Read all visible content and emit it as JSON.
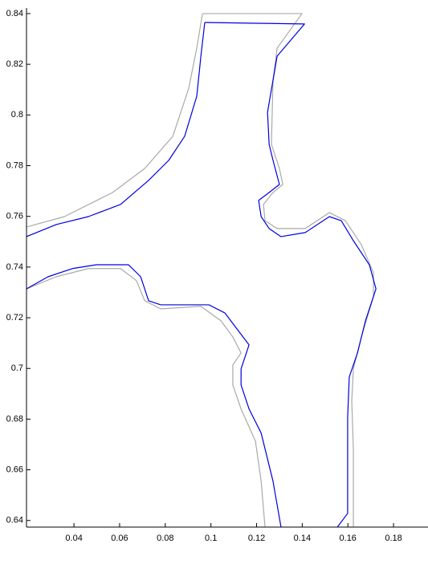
{
  "chart_data": {
    "type": "line",
    "xlim": [
      0.0192,
      0.1951
    ],
    "ylim": [
      0.6374,
      0.8422
    ],
    "xticks": [
      0.04,
      0.06,
      0.08,
      0.1,
      0.12,
      0.14,
      0.16,
      0.18
    ],
    "yticks": [
      0.64,
      0.66,
      0.68,
      0.7,
      0.72,
      0.74,
      0.76,
      0.78,
      0.8,
      0.82,
      0.84
    ],
    "series": [
      {
        "color": "#a9a9a9",
        "x": [
          0.0963,
          0.1399,
          0.129,
          0.1272,
          0.1265,
          0.13,
          0.1315,
          0.1272,
          0.123,
          0.1237,
          0.129,
          0.1413,
          0.1519,
          0.1589,
          0.1659,
          0.1712,
          0.1712,
          0.1659,
          0.1624,
          0.1617,
          0.1624,
          0.1624,
          0.1624
        ],
        "y": [
          0.84,
          0.84,
          0.8264,
          0.8137,
          0.7884,
          0.7789,
          0.7726,
          0.7694,
          0.7647,
          0.7583,
          0.7552,
          0.7552,
          0.7615,
          0.7583,
          0.7488,
          0.7378,
          0.7283,
          0.7124,
          0.6998,
          0.6871,
          0.6681,
          0.6492,
          0.6374
        ]
      },
      {
        "color": "#a9a9a9",
        "x": [
          0.1237,
          0.122,
          0.1195,
          0.1132,
          0.1096,
          0.1096,
          0.1132,
          0.1096,
          0.1044,
          0.0956,
          0.078,
          0.071,
          0.0674,
          0.0604,
          0.0463,
          0.0323,
          0.0192
        ],
        "y": [
          0.6374,
          0.6555,
          0.6713,
          0.684,
          0.6935,
          0.7014,
          0.7061,
          0.7124,
          0.7188,
          0.7245,
          0.7235,
          0.7267,
          0.7346,
          0.7394,
          0.7394,
          0.7362,
          0.7314
        ]
      },
      {
        "color": "#a9a9a9",
        "x": [
          0.0192,
          0.0358,
          0.0569,
          0.071,
          0.0833,
          0.0903,
          0.0938,
          0.0963
        ],
        "y": [
          0.7558,
          0.7599,
          0.7694,
          0.7789,
          0.7916,
          0.8106,
          0.8264,
          0.84
        ]
      },
      {
        "color": "#0000e0",
        "x": [
          0.0973,
          0.141,
          0.129,
          0.1272,
          0.1248,
          0.1255,
          0.1272,
          0.13,
          0.1255,
          0.1209,
          0.122,
          0.1255,
          0.1307,
          0.1413,
          0.1519,
          0.1571,
          0.1624,
          0.1694,
          0.1723,
          0.1677,
          0.1642,
          0.1606,
          0.1599,
          0.1599,
          0.1599,
          0.1554
        ],
        "y": [
          0.8365,
          0.8359,
          0.8232,
          0.8137,
          0.8011,
          0.7884,
          0.7821,
          0.7726,
          0.7694,
          0.7663,
          0.7599,
          0.7552,
          0.752,
          0.7536,
          0.7599,
          0.7583,
          0.7504,
          0.7409,
          0.7314,
          0.7188,
          0.7061,
          0.6966,
          0.6808,
          0.6618,
          0.6428,
          0.6374
        ]
      },
      {
        "color": "#0000e0",
        "x": [
          0.1307,
          0.1272,
          0.122,
          0.1167,
          0.1132,
          0.1132,
          0.1167,
          0.1114,
          0.1061,
          0.0991,
          0.0885,
          0.078,
          0.0727,
          0.0692,
          0.0639,
          0.0498,
          0.0393,
          0.0287,
          0.0192
        ],
        "y": [
          0.6374,
          0.6555,
          0.6745,
          0.684,
          0.6935,
          0.6998,
          0.7093,
          0.7156,
          0.7219,
          0.7251,
          0.7251,
          0.7251,
          0.7267,
          0.7362,
          0.7409,
          0.7409,
          0.7394,
          0.7362,
          0.7314
        ]
      },
      {
        "color": "#0000e0",
        "x": [
          0.0192,
          0.0323,
          0.0463,
          0.0604,
          0.0727,
          0.0815,
          0.0885,
          0.0938,
          0.0956,
          0.0973
        ],
        "y": [
          0.752,
          0.7568,
          0.7599,
          0.7647,
          0.7742,
          0.7821,
          0.7916,
          0.8074,
          0.8232,
          0.8365
        ]
      }
    ]
  }
}
